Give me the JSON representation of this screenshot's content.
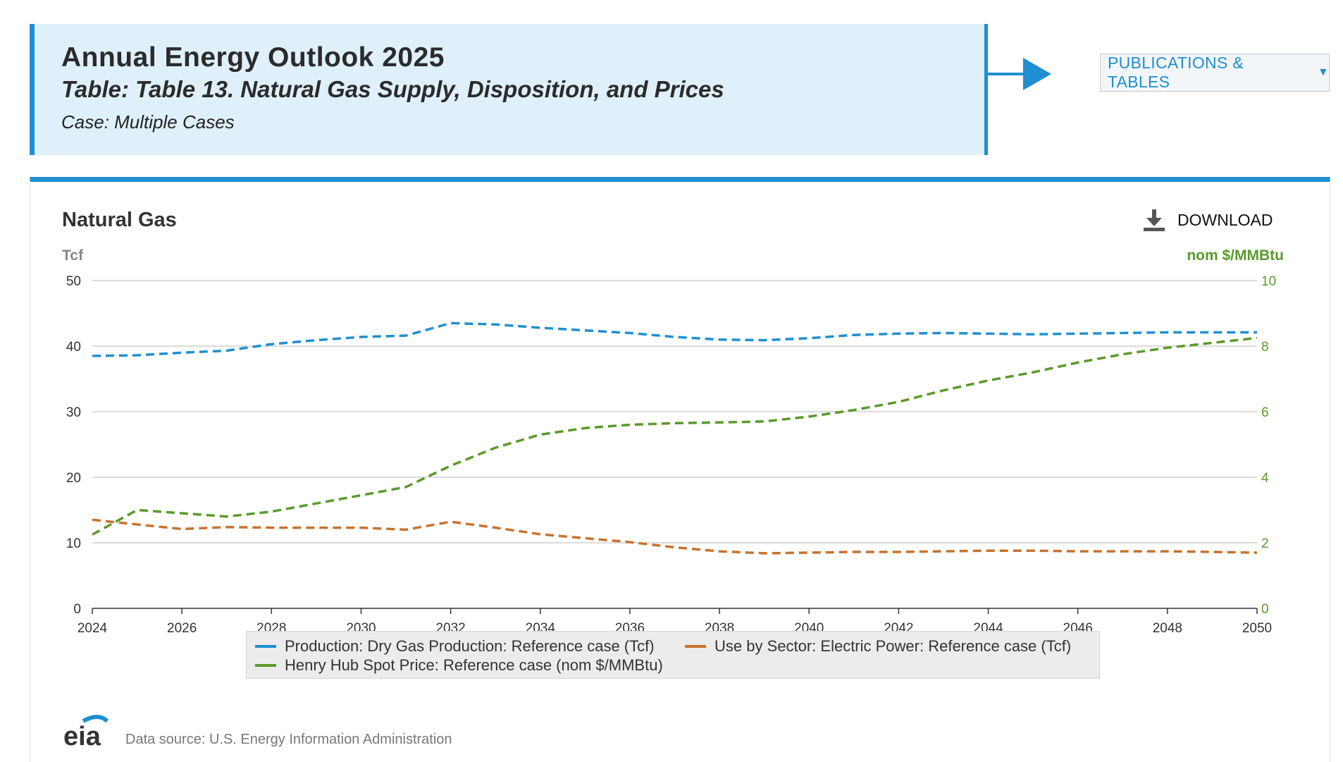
{
  "header": {
    "title": "Annual Energy Outlook 2025",
    "table": "Table: Table 13. Natural Gas Supply, Disposition, and Prices",
    "case": "Case: Multiple Cases"
  },
  "publications_button": {
    "label": "PUBLICATIONS & TABLES"
  },
  "download": {
    "label": "DOWNLOAD"
  },
  "source": {
    "logo_text": "eia",
    "text": "Data source: U.S. Energy Information Administration"
  },
  "colors": {
    "accent": "#1e8fd1",
    "series_blue": "#1e90d0",
    "series_orange": "#c8722c",
    "series_green": "#5a9a2a"
  },
  "chart_data": {
    "type": "line",
    "title": "Natural Gas",
    "ylabel_left": "Tcf",
    "ylabel_right": "nom $/MMBtu",
    "xlim": [
      2024,
      2050
    ],
    "ylim_left": [
      0,
      50
    ],
    "ylim_right": [
      0,
      10
    ],
    "x_ticks": [
      "2024",
      "2026",
      "2028",
      "2030",
      "2032",
      "2034",
      "2036",
      "2038",
      "2040",
      "2042",
      "2044",
      "2046",
      "2048",
      "2050"
    ],
    "y_ticks_left": [
      "0",
      "10",
      "20",
      "30",
      "40",
      "50"
    ],
    "y_ticks_right": [
      "0",
      "2",
      "4",
      "6",
      "8",
      "10"
    ],
    "grid": true,
    "legend_position": "bottom",
    "x": [
      2024,
      2025,
      2026,
      2027,
      2028,
      2029,
      2030,
      2031,
      2032,
      2033,
      2034,
      2035,
      2036,
      2037,
      2038,
      2039,
      2040,
      2041,
      2042,
      2043,
      2044,
      2045,
      2046,
      2047,
      2048,
      2049,
      2050
    ],
    "series": [
      {
        "name": "Production: Dry Gas Production: Reference case (Tcf)",
        "axis": "left",
        "style": "dashed",
        "color": "#1e90d0",
        "values": [
          38.5,
          38.6,
          39.0,
          39.3,
          40.3,
          40.9,
          41.4,
          41.6,
          43.5,
          43.3,
          42.8,
          42.4,
          42.0,
          41.4,
          41.0,
          40.9,
          41.2,
          41.7,
          41.9,
          42.0,
          41.9,
          41.8,
          41.9,
          42.0,
          42.1,
          42.1,
          42.1
        ]
      },
      {
        "name": "Use by Sector: Electric Power: Reference case (Tcf)",
        "axis": "left",
        "style": "dashed",
        "color": "#c8722c",
        "values": [
          13.5,
          12.8,
          12.1,
          12.4,
          12.3,
          12.3,
          12.3,
          12.0,
          13.2,
          12.3,
          11.3,
          10.7,
          10.1,
          9.3,
          8.7,
          8.4,
          8.5,
          8.6,
          8.6,
          8.7,
          8.8,
          8.8,
          8.7,
          8.7,
          8.7,
          8.6,
          8.5
        ]
      },
      {
        "name": "Henry Hub Spot Price: Reference case (nom $/MMBtu)",
        "axis": "right",
        "style": "dashed",
        "color": "#5a9a2a",
        "values": [
          2.25,
          3.0,
          2.9,
          2.8,
          2.95,
          3.2,
          3.45,
          3.7,
          4.35,
          4.9,
          5.3,
          5.5,
          5.6,
          5.65,
          5.67,
          5.7,
          5.85,
          6.05,
          6.3,
          6.65,
          6.95,
          7.2,
          7.5,
          7.75,
          7.95,
          8.1,
          8.25
        ]
      }
    ]
  }
}
